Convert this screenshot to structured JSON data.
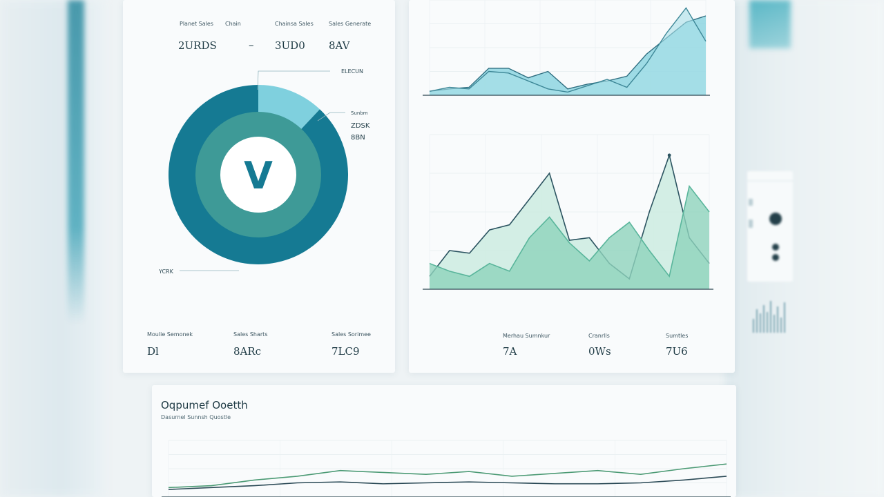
{
  "colors": {
    "teal_dark": "#157a93",
    "teal_mid": "#3e9a97",
    "teal_light": "#7fd0de",
    "mint": "#8fd3bb",
    "line_dark": "#2b5360"
  },
  "donut_card": {
    "header_labels": [
      "Planet Sales",
      "Chain",
      "Chainsa Sales",
      "Sales Generate"
    ],
    "header_values": [
      "2URDS",
      "–",
      "3UD0",
      "8AV"
    ],
    "logo_letter": "V",
    "callouts": [
      "ELECUN",
      "Sunbm",
      "ZDSK",
      "8BN",
      "YCRK"
    ],
    "footer_labels": [
      "Moulie Semonek",
      "Sales Sharts",
      "Sales Sorimee"
    ],
    "footer_values": [
      "Dl",
      "8ARc",
      "7LC9"
    ]
  },
  "lines_card": {
    "footer_labels": [
      "Merhau Sumnkur",
      "Cranrlls",
      "Sumtles"
    ],
    "footer_values": [
      "7A",
      "0Ws",
      "7U6"
    ]
  },
  "bottom_card": {
    "title": "Oqpumef Ooetth",
    "subtitle": "Dasurnel Sunnsh Quostle"
  },
  "chart_data": [
    {
      "type": "pie",
      "labels": [
        "",
        ""
      ],
      "values": [
        88,
        12
      ],
      "inner_ring": true
    },
    {
      "type": "area",
      "x": [
        0,
        1,
        2,
        3,
        4,
        5,
        6,
        7,
        8,
        9,
        10,
        11,
        12,
        13,
        14
      ],
      "series": [
        {
          "values": [
            5,
            8,
            10,
            34,
            34,
            22,
            30,
            8,
            14,
            18,
            24,
            52,
            72,
            92,
            100
          ]
        },
        {
          "values": [
            5,
            10,
            8,
            30,
            28,
            18,
            8,
            4,
            12,
            20,
            10,
            40,
            78,
            110,
            68
          ]
        }
      ],
      "ylim": [
        0,
        120
      ]
    },
    {
      "type": "area",
      "x": [
        0,
        1,
        2,
        3,
        4,
        5,
        6,
        7,
        8,
        9,
        10,
        11,
        12,
        13,
        14
      ],
      "series": [
        {
          "values": [
            10,
            30,
            28,
            46,
            50,
            70,
            90,
            38,
            40,
            20,
            8,
            60,
            104,
            40,
            20
          ]
        },
        {
          "values": [
            20,
            14,
            10,
            20,
            14,
            40,
            56,
            36,
            22,
            40,
            52,
            30,
            10,
            80,
            60
          ]
        }
      ],
      "ylim": [
        0,
        120
      ]
    },
    {
      "type": "line",
      "x": [
        0,
        1,
        2,
        3,
        4,
        5,
        6,
        7,
        8,
        9,
        10,
        11,
        12,
        13
      ],
      "series": [
        {
          "values": [
            10,
            12,
            18,
            22,
            28,
            26,
            24,
            27,
            22,
            25,
            28,
            24,
            30,
            35
          ]
        },
        {
          "values": [
            8,
            10,
            12,
            15,
            16,
            14,
            15,
            16,
            15,
            14,
            14,
            15,
            18,
            22
          ]
        }
      ],
      "ylim": [
        0,
        60
      ]
    }
  ]
}
